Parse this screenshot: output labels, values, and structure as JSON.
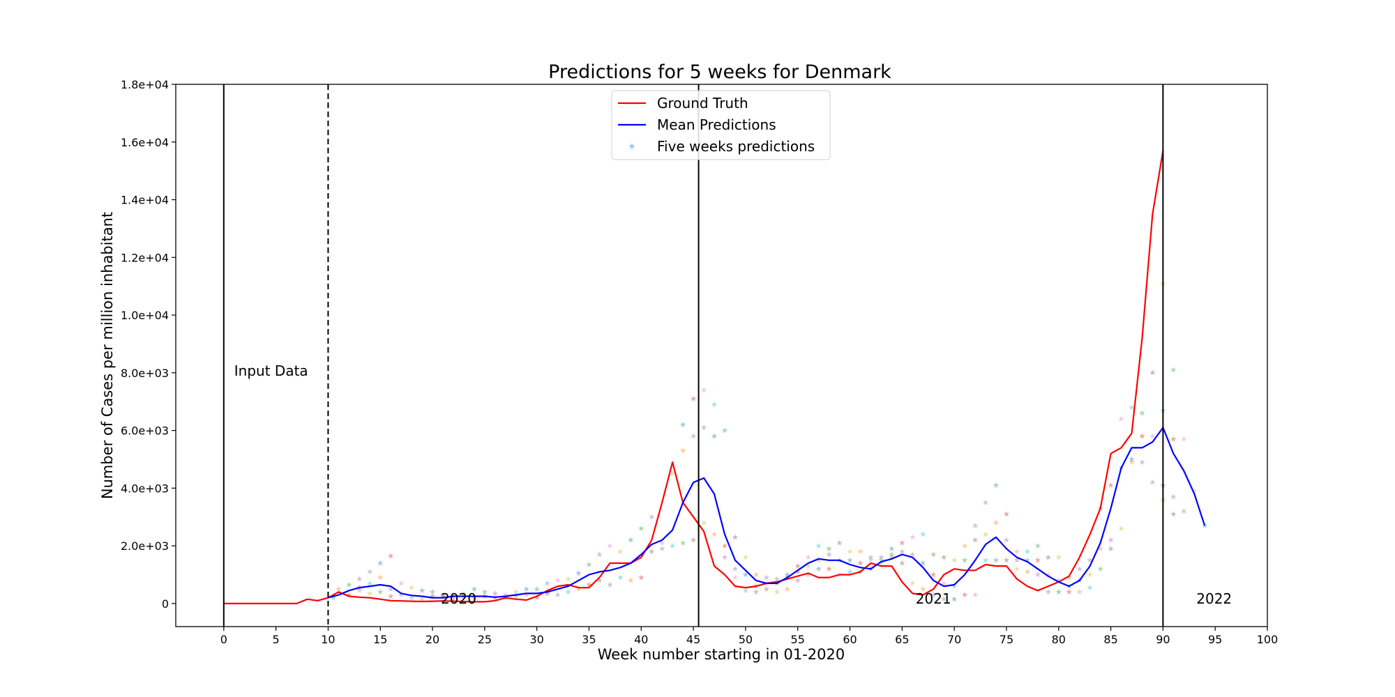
{
  "chart_data": {
    "type": "line",
    "title": "Predictions for 5 weeks for Denmark",
    "xlabel": "Week number starting in 01-2020",
    "ylabel": "Number of Cases per million inhabitant",
    "xlim": [
      -4.6,
      100
    ],
    "ylim": [
      -800,
      18000
    ],
    "x_ticks": [
      0,
      5,
      10,
      15,
      20,
      25,
      30,
      35,
      40,
      45,
      50,
      55,
      60,
      65,
      70,
      75,
      80,
      85,
      90,
      95,
      100
    ],
    "y_ticks": [
      0,
      2000,
      4000,
      6000,
      8000,
      10000,
      12000,
      14000,
      16000,
      18000
    ],
    "y_tick_labels": [
      "0",
      "2.0e+03",
      "4.0e+03",
      "6.0e+03",
      "8.0e+03",
      "1.0e+04",
      "1.2e+04",
      "1.4e+04",
      "1.6e+04",
      "1.8e+04"
    ],
    "legend_position": "top-center",
    "grid": false,
    "colors": {
      "ground_truth": "#ff0000",
      "mean_predictions": "#0000ff"
    },
    "legend": [
      {
        "label": "Ground Truth",
        "kind": "line",
        "color": "#ff0000"
      },
      {
        "label": "Mean Predictions",
        "kind": "line",
        "color": "#0000ff"
      },
      {
        "label": "Five weeks predictions",
        "kind": "star",
        "color": "#7fb8e0"
      }
    ],
    "vertical_lines": [
      {
        "x": 0,
        "style": "solid"
      },
      {
        "x": 10,
        "style": "dashed"
      },
      {
        "x": 45.5,
        "style": "solid"
      },
      {
        "x": 90,
        "style": "solid"
      }
    ],
    "annotations": [
      {
        "text": "Input Data",
        "x": 1,
        "y": 7900
      },
      {
        "text": "2020",
        "x": 20.8,
        "y": 0
      },
      {
        "text": "2021",
        "x": 66.3,
        "y": 0
      },
      {
        "text": "2022",
        "x": 93.2,
        "y": 0
      }
    ],
    "series": [
      {
        "name": "Ground Truth",
        "color": "#ff0000",
        "x": [
          0,
          1,
          2,
          3,
          4,
          5,
          6,
          7,
          8,
          9,
          10,
          11,
          12,
          13,
          14,
          15,
          16,
          17,
          18,
          19,
          20,
          21,
          22,
          23,
          24,
          25,
          26,
          27,
          28,
          29,
          30,
          31,
          32,
          33,
          34,
          35,
          36,
          37,
          38,
          39,
          40,
          41,
          42,
          43,
          44,
          45,
          46,
          47,
          48,
          49,
          50,
          51,
          52,
          53,
          54,
          55,
          56,
          57,
          58,
          59,
          60,
          61,
          62,
          63,
          64,
          65,
          66,
          67,
          68,
          69,
          70,
          71,
          72,
          73,
          74,
          75,
          76,
          77,
          78,
          79,
          80,
          81,
          82,
          83,
          84,
          85,
          86,
          87,
          88,
          89,
          90
        ],
        "values": [
          0,
          0,
          0,
          0,
          0,
          0,
          0,
          0,
          150,
          100,
          200,
          400,
          250,
          220,
          200,
          150,
          100,
          90,
          80,
          70,
          80,
          90,
          80,
          70,
          60,
          60,
          100,
          200,
          150,
          120,
          250,
          450,
          600,
          650,
          550,
          550,
          900,
          1400,
          1400,
          1400,
          1600,
          2200,
          3500,
          4900,
          3500,
          3000,
          2500,
          1300,
          1000,
          600,
          550,
          600,
          700,
          750,
          850,
          950,
          1050,
          900,
          900,
          1000,
          1000,
          1100,
          1400,
          1300,
          1300,
          750,
          350,
          300,
          500,
          1000,
          1200,
          1150,
          1150,
          1350,
          1300,
          1300,
          850,
          600,
          450,
          600,
          750,
          950,
          1600,
          2400,
          3300,
          5200,
          5400,
          5900,
          9200,
          13500,
          15700
        ]
      },
      {
        "name": "Mean Predictions",
        "color": "#0000ff",
        "x": [
          10,
          11,
          12,
          13,
          14,
          15,
          16,
          17,
          18,
          19,
          20,
          21,
          22,
          23,
          24,
          25,
          26,
          27,
          28,
          29,
          30,
          31,
          32,
          33,
          34,
          35,
          36,
          37,
          38,
          39,
          40,
          41,
          42,
          43,
          44,
          45,
          46,
          47,
          48,
          49,
          50,
          51,
          52,
          53,
          54,
          55,
          56,
          57,
          58,
          59,
          60,
          61,
          62,
          63,
          64,
          65,
          66,
          67,
          68,
          69,
          70,
          71,
          72,
          73,
          74,
          75,
          76,
          77,
          78,
          79,
          80,
          81,
          82,
          83,
          84,
          85,
          86,
          87,
          88,
          89,
          90,
          91,
          92,
          93,
          94
        ],
        "values": [
          200,
          300,
          450,
          550,
          600,
          650,
          600,
          350,
          280,
          250,
          200,
          200,
          250,
          250,
          250,
          250,
          220,
          250,
          300,
          350,
          350,
          400,
          500,
          600,
          800,
          1000,
          1100,
          1150,
          1250,
          1400,
          1700,
          2050,
          2200,
          2550,
          3500,
          4200,
          4350,
          3800,
          2400,
          1500,
          1150,
          800,
          700,
          700,
          900,
          1150,
          1400,
          1550,
          1500,
          1500,
          1350,
          1250,
          1200,
          1450,
          1550,
          1700,
          1600,
          1250,
          800,
          600,
          650,
          1000,
          1500,
          2050,
          2300,
          1900,
          1600,
          1450,
          1200,
          950,
          750,
          600,
          800,
          1300,
          2100,
          3300,
          4700,
          5400,
          5400,
          5600,
          6100,
          5200,
          4600,
          3800,
          2700
        ]
      }
    ],
    "five_week_predictions_colors": [
      "#1f77b4",
      "#ff7f0e",
      "#2ca02c",
      "#d62728",
      "#9467bd",
      "#8c564b",
      "#e377c2",
      "#7f7f7f",
      "#bcbd22",
      "#17becf"
    ],
    "five_week_predictions": [
      [
        10.5,
        200
      ],
      [
        11,
        500
      ],
      [
        12,
        650
      ],
      [
        12,
        300
      ],
      [
        13,
        850
      ],
      [
        13,
        550
      ],
      [
        13,
        450
      ],
      [
        14,
        1100
      ],
      [
        14,
        350
      ],
      [
        14,
        700
      ],
      [
        15,
        1400
      ],
      [
        15,
        900
      ],
      [
        15,
        400
      ],
      [
        16,
        1650
      ],
      [
        16,
        500
      ],
      [
        16,
        250
      ],
      [
        17,
        700
      ],
      [
        17,
        300
      ],
      [
        18,
        550
      ],
      [
        18,
        200
      ],
      [
        19,
        450
      ],
      [
        19,
        150
      ],
      [
        20,
        400
      ],
      [
        20,
        250
      ],
      [
        21,
        300
      ],
      [
        21,
        250
      ],
      [
        22,
        300
      ],
      [
        22,
        150
      ],
      [
        23,
        350
      ],
      [
        23,
        250
      ],
      [
        24,
        500
      ],
      [
        24,
        200
      ],
      [
        25,
        400
      ],
      [
        25,
        250
      ],
      [
        26,
        350
      ],
      [
        26,
        200
      ],
      [
        27,
        300
      ],
      [
        27,
        200
      ],
      [
        28,
        400
      ],
      [
        28,
        250
      ],
      [
        29,
        500
      ],
      [
        29,
        300
      ],
      [
        30,
        500
      ],
      [
        30,
        200
      ],
      [
        31,
        700
      ],
      [
        31,
        350
      ],
      [
        32,
        800
      ],
      [
        32,
        300
      ],
      [
        33,
        850
      ],
      [
        33,
        400
      ],
      [
        34,
        1050
      ],
      [
        34,
        500
      ],
      [
        35,
        1350
      ],
      [
        35,
        650
      ],
      [
        36,
        1700
      ],
      [
        36,
        800
      ],
      [
        37,
        2000
      ],
      [
        37,
        650
      ],
      [
        38,
        1800
      ],
      [
        38,
        900
      ],
      [
        39,
        2200
      ],
      [
        39,
        800
      ],
      [
        40,
        2600
      ],
      [
        40,
        900
      ],
      [
        41,
        3000
      ],
      [
        41,
        1800
      ],
      [
        42,
        2100
      ],
      [
        42,
        1900
      ],
      [
        43,
        4500
      ],
      [
        43,
        2000
      ],
      [
        44,
        6200
      ],
      [
        44,
        5300
      ],
      [
        44,
        2100
      ],
      [
        45,
        7100
      ],
      [
        45,
        5800
      ],
      [
        45,
        2200
      ],
      [
        46,
        7400
      ],
      [
        46,
        6100
      ],
      [
        46,
        2800
      ],
      [
        47,
        6900
      ],
      [
        47,
        5800
      ],
      [
        47,
        2400
      ],
      [
        48,
        6000
      ],
      [
        48,
        2000
      ],
      [
        48,
        1600
      ],
      [
        49,
        2300
      ],
      [
        49,
        900
      ],
      [
        49,
        1200
      ],
      [
        50,
        1600
      ],
      [
        50,
        450
      ],
      [
        50,
        1000
      ],
      [
        51,
        1000
      ],
      [
        51,
        400
      ],
      [
        51,
        600
      ],
      [
        52,
        900
      ],
      [
        52,
        500
      ],
      [
        52,
        700
      ],
      [
        53,
        850
      ],
      [
        53,
        400
      ],
      [
        53,
        700
      ],
      [
        54,
        1000
      ],
      [
        54,
        500
      ],
      [
        54,
        900
      ],
      [
        55,
        1300
      ],
      [
        55,
        800
      ],
      [
        55,
        1100
      ],
      [
        56,
        1600
      ],
      [
        56,
        1000
      ],
      [
        56,
        1300
      ],
      [
        57,
        2000
      ],
      [
        57,
        1200
      ],
      [
        57,
        1500
      ],
      [
        58,
        1900
      ],
      [
        58,
        1200
      ],
      [
        58,
        1700
      ],
      [
        59,
        2100
      ],
      [
        59,
        1000
      ],
      [
        59,
        1500
      ],
      [
        60,
        1800
      ],
      [
        60,
        1100
      ],
      [
        60,
        1500
      ],
      [
        61,
        1800
      ],
      [
        61,
        1100
      ],
      [
        61,
        1400
      ],
      [
        62,
        1600
      ],
      [
        62,
        1200
      ],
      [
        62,
        1500
      ],
      [
        63,
        1600
      ],
      [
        63,
        1400
      ],
      [
        63,
        1500
      ],
      [
        64,
        1900
      ],
      [
        64,
        1600
      ],
      [
        64,
        1700
      ],
      [
        65,
        2100
      ],
      [
        65,
        1800
      ],
      [
        65,
        1400
      ],
      [
        66,
        2300
      ],
      [
        66,
        1700
      ],
      [
        66,
        700
      ],
      [
        67,
        2400
      ],
      [
        67,
        1400
      ],
      [
        67,
        500
      ],
      [
        68,
        1700
      ],
      [
        68,
        1000
      ],
      [
        68,
        300
      ],
      [
        69,
        1600
      ],
      [
        69,
        700
      ],
      [
        69,
        150
      ],
      [
        70,
        1500
      ],
      [
        70,
        600
      ],
      [
        70,
        150
      ],
      [
        71,
        2000
      ],
      [
        71,
        1500
      ],
      [
        71,
        300
      ],
      [
        72,
        2700
      ],
      [
        72,
        2200
      ],
      [
        72,
        300
      ],
      [
        73,
        3500
      ],
      [
        73,
        2400
      ],
      [
        73,
        1500
      ],
      [
        74,
        4100
      ],
      [
        74,
        2800
      ],
      [
        74,
        1500
      ],
      [
        75,
        3100
      ],
      [
        75,
        2200
      ],
      [
        75,
        1500
      ],
      [
        76,
        1800
      ],
      [
        76,
        1500
      ],
      [
        76,
        1200
      ],
      [
        77,
        1800
      ],
      [
        77,
        1500
      ],
      [
        77,
        1100
      ],
      [
        78,
        2000
      ],
      [
        78,
        1500
      ],
      [
        78,
        1000
      ],
      [
        79,
        1600
      ],
      [
        79,
        1000
      ],
      [
        79,
        400
      ],
      [
        80,
        1600
      ],
      [
        80,
        800
      ],
      [
        80,
        400
      ],
      [
        81,
        900
      ],
      [
        81,
        600
      ],
      [
        81,
        400
      ],
      [
        82,
        1200
      ],
      [
        82,
        800
      ],
      [
        82,
        400
      ],
      [
        83,
        1500
      ],
      [
        83,
        1000
      ],
      [
        83,
        550
      ],
      [
        84,
        3300
      ],
      [
        84,
        1900
      ],
      [
        84,
        1200
      ],
      [
        85,
        4100
      ],
      [
        85,
        2200
      ],
      [
        85,
        1900
      ],
      [
        86,
        6400
      ],
      [
        86,
        4700
      ],
      [
        86,
        2600
      ],
      [
        87,
        6800
      ],
      [
        87,
        5000
      ],
      [
        87,
        4900
      ],
      [
        88,
        6600
      ],
      [
        88,
        5800
      ],
      [
        88,
        4900
      ],
      [
        89,
        8000
      ],
      [
        89,
        5800
      ],
      [
        89,
        4200
      ],
      [
        90,
        11100
      ],
      [
        90,
        6700
      ],
      [
        90,
        4100
      ],
      [
        90,
        3600
      ],
      [
        91,
        8100
      ],
      [
        91,
        5700
      ],
      [
        91,
        3700
      ],
      [
        91,
        3100
      ],
      [
        92,
        5700
      ],
      [
        92,
        3200
      ],
      [
        93,
        3900
      ],
      [
        94,
        2700
      ]
    ]
  }
}
